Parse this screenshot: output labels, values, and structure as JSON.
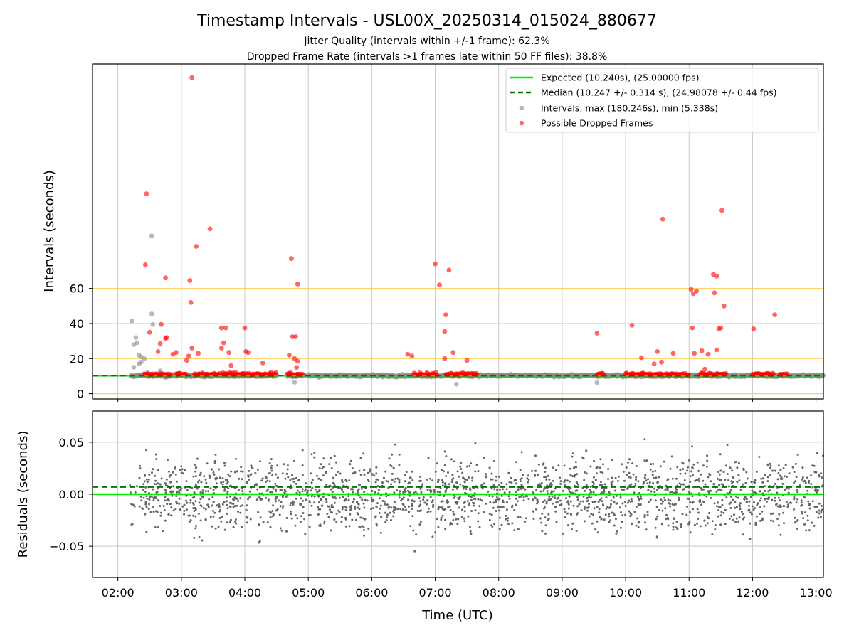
{
  "chart_data": [
    {
      "type": "scatter",
      "title": "Timestamp Intervals - USL00X_20250314_015024_880677",
      "subtitle_1": "Jitter Quality (intervals within +/-1 frame): 62.3%",
      "subtitle_2": "Dropped Frame Rate (intervals >1 frames late within 50 FF files): 38.8%",
      "xlabel": "",
      "ylabel": "Intervals (seconds)",
      "x_ticks": [
        "02:00",
        "03:00",
        "04:00",
        "05:00",
        "06:00",
        "07:00",
        "08:00",
        "09:00",
        "10:00",
        "11:00",
        "12:00",
        "13:00"
      ],
      "y_ticks": [
        0,
        20,
        40,
        60
      ],
      "xlim": [
        "01:36",
        "13:07"
      ],
      "ylim": [
        -3,
        188
      ],
      "grid": "vertical",
      "reference_lines": [
        0,
        20,
        40,
        60
      ],
      "legend_position": "top-right",
      "series": [
        {
          "name": "Expected (10.240s), (25.00000 fps)",
          "kind": "hline",
          "color": "#00ee00",
          "style": "solid",
          "y": 10.24
        },
        {
          "name": "Median (10.247 +/- 0.314 s), (24.98078 +/- 0.44 fps)",
          "kind": "hline",
          "color": "#007700",
          "style": "dashed",
          "y": 10.247
        },
        {
          "name": "Intervals, max (180.246s), min (5.338s)",
          "kind": "scatter",
          "color": "#888888",
          "points": [
            [
              "02:13",
              41.5
            ],
            [
              "02:17",
              32
            ],
            [
              "02:15",
              28
            ],
            [
              "02:18",
              29
            ],
            [
              "02:20",
              22
            ],
            [
              "02:22",
              21
            ],
            [
              "02:25",
              20
            ],
            [
              "02:20",
              17
            ],
            [
              "02:22",
              18
            ],
            [
              "02:32",
              45.5
            ],
            [
              "02:33",
              39.5
            ],
            [
              "02:32",
              90
            ],
            [
              "02:15",
              15
            ],
            [
              "02:45",
              9
            ],
            [
              "04:47",
              6.5
            ],
            [
              "07:20",
              5.4
            ],
            [
              "09:33",
              6.3
            ],
            [
              "02:28",
              12
            ],
            [
              "02:40",
              13
            ]
          ]
        },
        {
          "name": "Possible Dropped Frames",
          "kind": "scatter",
          "color": "#ff0000",
          "points": [
            [
              "03:10",
              180.2
            ],
            [
              "02:27",
              114
            ],
            [
              "03:27",
              94
            ],
            [
              "02:26",
              73.5
            ],
            [
              "03:14",
              84
            ],
            [
              "02:45",
              66
            ],
            [
              "03:08",
              64.5
            ],
            [
              "03:09",
              52
            ],
            [
              "02:41",
              39.5
            ],
            [
              "02:30",
              35
            ],
            [
              "02:46",
              32
            ],
            [
              "02:45",
              31.5
            ],
            [
              "02:40",
              28.5
            ],
            [
              "02:38",
              24
            ],
            [
              "02:55",
              23.5
            ],
            [
              "02:52",
              22.5
            ],
            [
              "03:07",
              21.5
            ],
            [
              "03:16",
              23
            ],
            [
              "03:10",
              26
            ],
            [
              "03:05",
              19
            ],
            [
              "03:38",
              37.5
            ],
            [
              "03:42",
              37.5
            ],
            [
              "03:40",
              29
            ],
            [
              "03:38",
              26
            ],
            [
              "03:45",
              23.5
            ],
            [
              "03:47",
              16
            ],
            [
              "04:00",
              37.5
            ],
            [
              "04:01",
              24
            ],
            [
              "04:03",
              23.5
            ],
            [
              "04:17",
              17.5
            ],
            [
              "04:44",
              77
            ],
            [
              "04:50",
              62.5
            ],
            [
              "04:45",
              32.5
            ],
            [
              "04:48",
              32.5
            ],
            [
              "04:42",
              22
            ],
            [
              "04:47",
              20
            ],
            [
              "04:50",
              18.5
            ],
            [
              "04:49",
              15
            ],
            [
              "06:34",
              22.5
            ],
            [
              "06:38",
              21.5
            ],
            [
              "07:00",
              74
            ],
            [
              "07:04",
              62
            ],
            [
              "07:13",
              70.5
            ],
            [
              "07:10",
              45
            ],
            [
              "07:09",
              35.5
            ],
            [
              "07:09",
              20
            ],
            [
              "07:17",
              23.5
            ],
            [
              "07:30",
              19
            ],
            [
              "09:33",
              34.5
            ],
            [
              "10:06",
              39
            ],
            [
              "10:15",
              20.5
            ],
            [
              "10:27",
              17
            ],
            [
              "10:30",
              24
            ],
            [
              "10:34",
              18
            ],
            [
              "10:35",
              99.5
            ],
            [
              "10:45",
              23
            ],
            [
              "11:02",
              59.5
            ],
            [
              "11:04",
              57
            ],
            [
              "11:07",
              58.5
            ],
            [
              "11:03",
              37.5
            ],
            [
              "11:05",
              23
            ],
            [
              "11:12",
              24.5
            ],
            [
              "11:15",
              14
            ],
            [
              "11:23",
              68
            ],
            [
              "11:26",
              67
            ],
            [
              "11:24",
              57.5
            ],
            [
              "11:28",
              37
            ],
            [
              "11:30",
              37.5
            ],
            [
              "11:31",
              104.5
            ],
            [
              "11:33",
              50
            ],
            [
              "11:26",
              25
            ],
            [
              "11:18",
              22.5
            ],
            [
              "12:01",
              37
            ],
            [
              "12:21",
              45
            ]
          ]
        }
      ]
    },
    {
      "type": "scatter",
      "ylabel": "Residuals (seconds)",
      "xlabel": "Time (UTC)",
      "y_ticks": [
        "0.05",
        "0.00",
        "−0.05"
      ],
      "ylim": [
        -0.08,
        0.08
      ],
      "grid": "both",
      "series": [
        {
          "kind": "hline",
          "color": "#00ee00",
          "style": "solid",
          "y": 0.0
        },
        {
          "kind": "hline",
          "color": "#007700",
          "style": "dashed",
          "y": 0.007
        },
        {
          "kind": "scatter",
          "color": "#666666",
          "x_range": [
            "02:11",
            "13:07"
          ],
          "spread_sd": 0.032,
          "count": 2200
        }
      ]
    }
  ],
  "colors": {
    "expected": "#00ee00",
    "median": "#007700",
    "intervals": "#888888",
    "dropped": "#ff0000",
    "reference": "#ffc84a",
    "residual": "#666666"
  }
}
